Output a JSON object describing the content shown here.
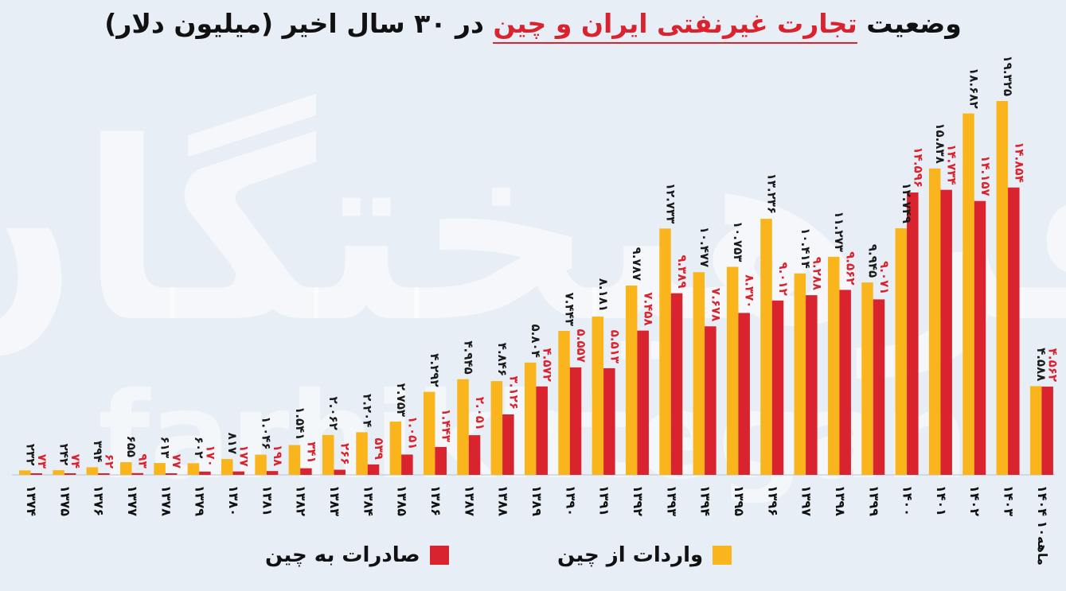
{
  "title": {
    "part1": "وضعیت",
    "highlight": "تجارت غیرنفتی ایران و چین",
    "part2": "در ۳۰ سال اخیر (میلیون دلار)"
  },
  "watermark": {
    "fa": "فرهیختگان",
    "en": "farhikhtegan"
  },
  "legend": {
    "imports": "واردات از چین",
    "exports": "صادرات به چین"
  },
  "colors": {
    "imports": "#f9b51b",
    "exports": "#d9232e",
    "background": "#e8eef5",
    "importLabel": "#1a1a1a",
    "exportLabel": "#d9232e"
  },
  "chart_data": {
    "type": "bar",
    "categories": [
      "۱۳۷۴",
      "۱۳۷۵",
      "۱۳۷۶",
      "۱۳۷۷",
      "۱۳۷۸",
      "۱۳۷۹",
      "۱۳۸۰",
      "۱۳۸۱",
      "۱۳۸۲",
      "۱۳۸۳",
      "۱۳۸۴",
      "۱۳۸۵",
      "۱۳۸۶",
      "۱۳۸۷",
      "۱۳۸۸",
      "۱۳۸۹",
      "۱۳۹۰",
      "۱۳۹۱",
      "۱۳۹۲",
      "۱۳۹۳",
      "۱۳۹۴",
      "۱۳۹۵",
      "۱۳۹۶",
      "۱۳۹۷",
      "۱۳۹۸",
      "۱۳۹۹",
      "۱۴۰۰",
      "۱۴۰۱",
      "۱۴۰۲",
      "۱۴۰۳",
      "۱۴۰۴ ۱۰ماهه"
    ],
    "series": [
      {
        "name": "واردات از چین",
        "key": "imports",
        "values": [
          232,
          242,
          394,
          655,
          613,
          602,
          817,
          1046,
          1541,
          2062,
          2204,
          2753,
          4292,
          4945,
          4846,
          5804,
          7443,
          8181,
          9787,
          12733,
          10477,
          10753,
          13236,
          10414,
          11273,
          9945,
          12749,
          15838,
          18682,
          19325,
          4588
        ],
        "labels": [
          "۲۳۲",
          "۲۴۲",
          "۳۹۴",
          "۶۵۵",
          "۶۱۳",
          "۶۰۲",
          "۸۱۷",
          "۱.۰۴۶",
          "۱.۵۴۱",
          "۲.۰۶۲",
          "۲.۲۰۴",
          "۲.۷۵۳",
          "۴.۲۹۲",
          "۴.۹۴۵",
          "۴.۸۴۶",
          "۵.۸۰۴",
          "۷.۴۴۳",
          "۸.۱۸۱",
          "۹.۷۸۷",
          "۱۲.۷۳۳",
          "۱۰.۴۷۷",
          "۱۰.۷۵۳",
          "۱۳.۲۳۶",
          "۱۰.۴۱۴",
          "۱۱.۲۷۳",
          "۹.۹۴۵",
          "۱۲.۷۴۹",
          "۱۵.۸۳۸",
          "۱۸.۶۸۲",
          "۱۹.۳۲۵",
          "۴.۵۸۸"
        ]
      },
      {
        "name": "صادرات به چین",
        "key": "exports",
        "values": [
          73,
          74,
          62,
          93,
          77,
          170,
          177,
          198,
          341,
          266,
          539,
          1051,
          1443,
          2051,
          3126,
          4572,
          5557,
          5513,
          7458,
          9389,
          7678,
          8370,
          9012,
          9288,
          9562,
          9071,
          14596,
          14734,
          14157,
          14854,
          4562
        ],
        "labels": [
          "۷۳",
          "۷۴",
          "۶۲",
          "۹۳",
          "۷۷",
          "۱۷۰",
          "۱۷۷",
          "۱۹۸",
          "۳۴۱",
          "۲۶۶",
          "۵۳۹",
          "۱.۰۵۱",
          "۱.۴۴۳",
          "۲.۰۵۱",
          "۳.۱۲۶",
          "۴.۵۷۲",
          "۵.۵۵۷",
          "۵.۵۱۳",
          "۷.۴۵۸",
          "۹.۳۸۹",
          "۷.۶۷۸",
          "۸.۳۷۰",
          "۹.۰۱۲",
          "۹.۲۸۸",
          "۹.۵۶۲",
          "۹.۰۷۱",
          "۱۴.۵۹۶",
          "۱۴.۷۳۴",
          "۱۴.۱۵۷",
          "۱۴.۸۵۴",
          "۴.۵۶۲"
        ]
      }
    ],
    "ylim": [
      0,
      20000
    ],
    "grid": false,
    "legend_position": "bottom"
  }
}
